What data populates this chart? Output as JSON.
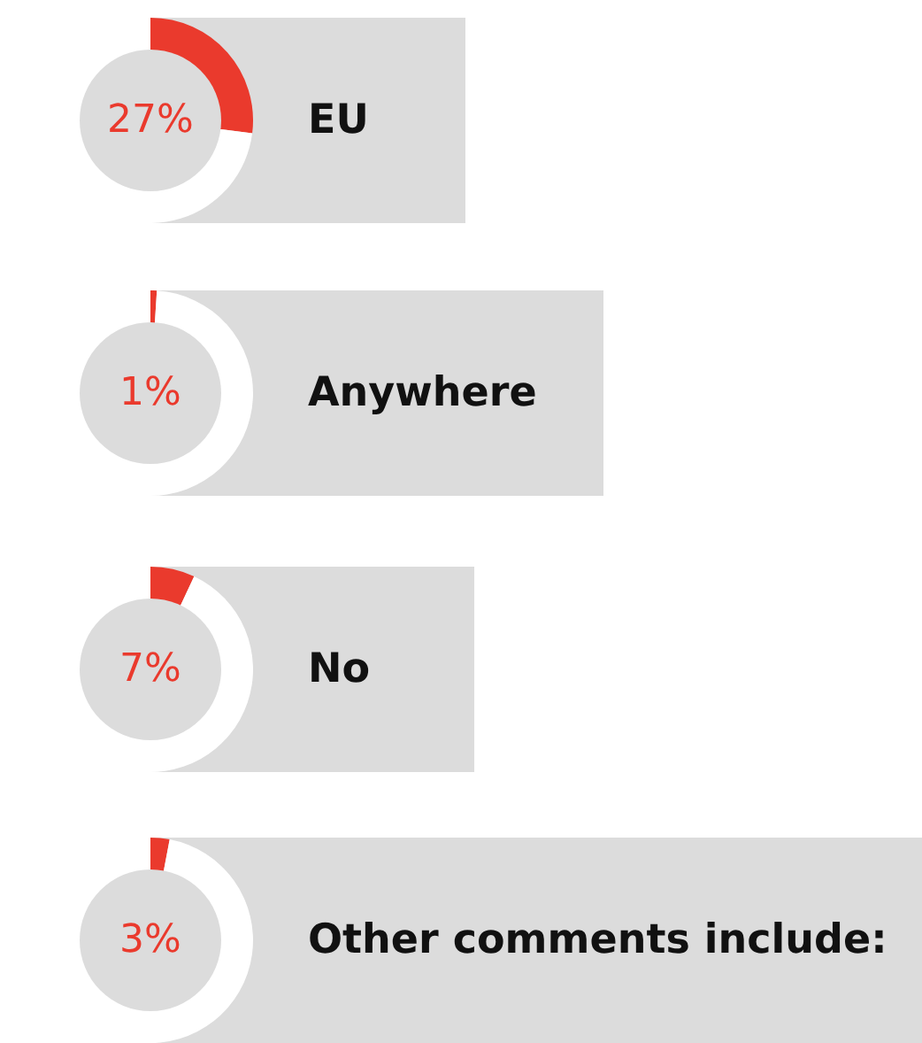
{
  "chart_data": [
    {
      "type": "donut",
      "title": "EU",
      "categories": [
        null,
        null
      ],
      "values": [
        27,
        73
      ],
      "colors": [
        "#ea3a2d",
        "#ffffff"
      ],
      "annotations": [
        "27%"
      ]
    },
    {
      "type": "donut",
      "title": "Anywhere",
      "categories": [
        null,
        null
      ],
      "values": [
        1,
        99
      ],
      "colors": [
        "#ea3a2d",
        "#ffffff"
      ],
      "annotations": [
        "1%"
      ]
    },
    {
      "type": "donut",
      "title": "No",
      "categories": [
        null,
        null
      ],
      "values": [
        7,
        93
      ],
      "colors": [
        "#ea3a2d",
        "#ffffff"
      ],
      "annotations": [
        "7%"
      ]
    },
    {
      "type": "donut",
      "title": "Other comments include:",
      "categories": [
        null,
        null
      ],
      "values": [
        3,
        97
      ],
      "colors": [
        "#ea3a2d",
        "#ffffff"
      ],
      "annotations": [
        "3%"
      ]
    }
  ]
}
